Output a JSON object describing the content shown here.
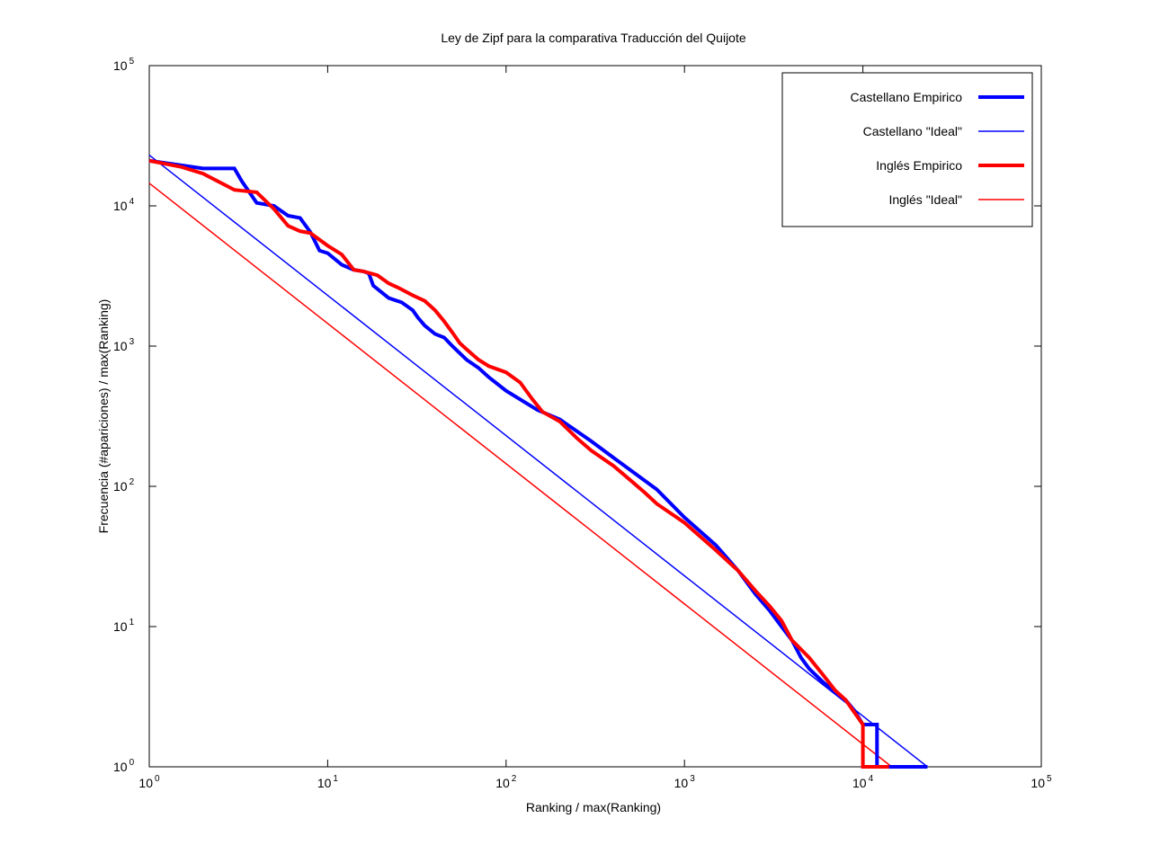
{
  "chart_data": {
    "type": "line",
    "title": "Ley de Zipf para la comparativa Traducción del Quijote",
    "xlabel": "Ranking / max(Ranking)",
    "ylabel": "Frecuencia (#apariciones) / max(Ranking)",
    "x_scale": "log",
    "y_scale": "log",
    "xlim": [
      1,
      100000
    ],
    "ylim": [
      1,
      100000
    ],
    "grid": false,
    "legend_position": "top-right",
    "x_ticks": [
      {
        "base": "10",
        "exp": "0",
        "value": 1
      },
      {
        "base": "10",
        "exp": "1",
        "value": 10
      },
      {
        "base": "10",
        "exp": "2",
        "value": 100
      },
      {
        "base": "10",
        "exp": "3",
        "value": 1000
      },
      {
        "base": "10",
        "exp": "4",
        "value": 10000
      },
      {
        "base": "10",
        "exp": "5",
        "value": 100000
      }
    ],
    "y_ticks": [
      {
        "base": "10",
        "exp": "0",
        "value": 1
      },
      {
        "base": "10",
        "exp": "1",
        "value": 10
      },
      {
        "base": "10",
        "exp": "2",
        "value": 100
      },
      {
        "base": "10",
        "exp": "3",
        "value": 1000
      },
      {
        "base": "10",
        "exp": "4",
        "value": 10000
      },
      {
        "base": "10",
        "exp": "5",
        "value": 100000
      }
    ],
    "series": [
      {
        "name": "Castellano Empirico",
        "color": "#0000ff",
        "style": "steps-thick",
        "points": [
          [
            1,
            21000
          ],
          [
            1.3,
            20000
          ],
          [
            2,
            18500
          ],
          [
            3,
            18500
          ],
          [
            3.3,
            15000
          ],
          [
            4,
            10500
          ],
          [
            5,
            10000
          ],
          [
            6,
            8500
          ],
          [
            7,
            8200
          ],
          [
            8,
            6500
          ],
          [
            9,
            4800
          ],
          [
            10,
            4600
          ],
          [
            12,
            3800
          ],
          [
            14,
            3500
          ],
          [
            16,
            3400
          ],
          [
            17,
            3300
          ],
          [
            18,
            2700
          ],
          [
            22,
            2200
          ],
          [
            26,
            2050
          ],
          [
            30,
            1800
          ],
          [
            32,
            1600
          ],
          [
            35,
            1400
          ],
          [
            40,
            1220
          ],
          [
            45,
            1150
          ],
          [
            50,
            1000
          ],
          [
            60,
            800
          ],
          [
            70,
            700
          ],
          [
            80,
            600
          ],
          [
            100,
            480
          ],
          [
            150,
            350
          ],
          [
            200,
            300
          ],
          [
            300,
            210
          ],
          [
            400,
            160
          ],
          [
            500,
            130
          ],
          [
            700,
            95
          ],
          [
            1000,
            60
          ],
          [
            1500,
            38
          ],
          [
            2000,
            25
          ],
          [
            2500,
            17
          ],
          [
            3000,
            13
          ],
          [
            3500,
            10
          ],
          [
            4000,
            8
          ],
          [
            4500,
            6
          ],
          [
            5000,
            5
          ],
          [
            6000,
            4
          ],
          [
            7000,
            3.4
          ],
          [
            8000,
            3
          ],
          [
            9000,
            2.5
          ],
          [
            10000,
            2
          ],
          [
            12000,
            2
          ],
          [
            12000,
            1
          ],
          [
            23000,
            1
          ]
        ]
      },
      {
        "name": "Castellano \"Ideal\"",
        "color": "#0000ff",
        "style": "line-thin",
        "points": [
          [
            1,
            23000
          ],
          [
            23000,
            1
          ]
        ]
      },
      {
        "name": "Inglés Empirico",
        "color": "#ff0000",
        "style": "steps-thick",
        "points": [
          [
            1,
            21000
          ],
          [
            1.5,
            19000
          ],
          [
            2,
            17000
          ],
          [
            3,
            13000
          ],
          [
            4,
            12500
          ],
          [
            5,
            9500
          ],
          [
            6,
            7200
          ],
          [
            7,
            6600
          ],
          [
            8,
            6400
          ],
          [
            10,
            5200
          ],
          [
            12,
            4500
          ],
          [
            14,
            3500
          ],
          [
            16,
            3400
          ],
          [
            19,
            3200
          ],
          [
            22,
            2800
          ],
          [
            25,
            2600
          ],
          [
            30,
            2300
          ],
          [
            35,
            2100
          ],
          [
            40,
            1800
          ],
          [
            45,
            1500
          ],
          [
            50,
            1250
          ],
          [
            55,
            1050
          ],
          [
            60,
            950
          ],
          [
            70,
            800
          ],
          [
            80,
            720
          ],
          [
            100,
            650
          ],
          [
            120,
            550
          ],
          [
            140,
            420
          ],
          [
            160,
            340
          ],
          [
            200,
            290
          ],
          [
            250,
            220
          ],
          [
            300,
            180
          ],
          [
            400,
            140
          ],
          [
            500,
            110
          ],
          [
            600,
            90
          ],
          [
            700,
            75
          ],
          [
            1000,
            55
          ],
          [
            1500,
            35
          ],
          [
            2000,
            25
          ],
          [
            2500,
            18
          ],
          [
            3000,
            14
          ],
          [
            3500,
            11
          ],
          [
            4000,
            8
          ],
          [
            5000,
            6
          ],
          [
            6000,
            4.5
          ],
          [
            7000,
            3.5
          ],
          [
            8000,
            3
          ],
          [
            10000,
            2
          ],
          [
            10000,
            1
          ],
          [
            14000,
            1
          ]
        ]
      },
      {
        "name": "Inglés \"Ideal\"",
        "color": "#ff0000",
        "style": "line-thin",
        "points": [
          [
            1,
            14500
          ],
          [
            14500,
            1
          ]
        ]
      }
    ]
  }
}
